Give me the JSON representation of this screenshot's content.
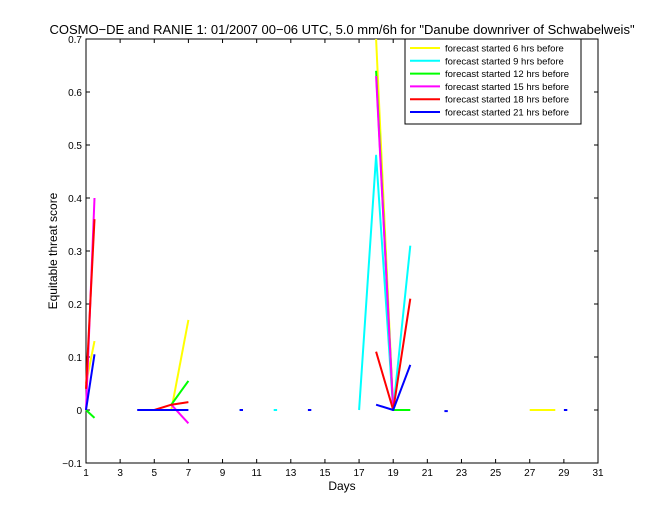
{
  "chart_data": {
    "type": "line",
    "title": "COSMO−DE and RANIE 1: 01/2007 00−06 UTC, 5.0 mm/6h for \"Danube downriver of Schwabelweis\"",
    "xlabel": "Days",
    "ylabel": "Equitable threat score",
    "xlim": [
      1,
      31
    ],
    "ylim": [
      -0.1,
      0.7
    ],
    "xticks": [
      "1",
      "3",
      "5",
      "7",
      "9",
      "11",
      "13",
      "15",
      "17",
      "19",
      "21",
      "23",
      "25",
      "27",
      "29",
      "31"
    ],
    "yticks": [
      "−0.1",
      "0",
      "0.1",
      "0.2",
      "0.3",
      "0.4",
      "0.5",
      "0.6",
      "0.7"
    ],
    "grid": false,
    "legend_position": "top-right",
    "series": [
      {
        "name": "forecast started 6 hrs before",
        "color": "#ffff00",
        "segments": [
          [
            [
              1.0,
              0.05
            ],
            [
              1.5,
              0.13
            ]
          ],
          [
            [
              6.0,
              0.0
            ],
            [
              7.0,
              0.17
            ]
          ],
          [
            [
              18.0,
              0.7
            ],
            [
              19.0,
              0.0
            ]
          ],
          [
            [
              27.0,
              0.0
            ],
            [
              28.5,
              0.0
            ]
          ]
        ]
      },
      {
        "name": "forecast started 9 hrs before",
        "color": "#00ffff",
        "segments": [
          [
            [
              17.0,
              0.0
            ],
            [
              18.0,
              0.48
            ],
            [
              19.0,
              0.0
            ],
            [
              20.0,
              0.31
            ]
          ],
          [
            [
              10.0,
              0.0
            ],
            [
              10.2,
              0.0
            ]
          ],
          [
            [
              12.0,
              0.0
            ],
            [
              12.2,
              0.0
            ]
          ]
        ]
      },
      {
        "name": "forecast started 12 hrs before",
        "color": "#00ff00",
        "segments": [
          [
            [
              1.0,
              0.0
            ],
            [
              1.5,
              -0.015
            ]
          ],
          [
            [
              6.0,
              0.01
            ],
            [
              7.0,
              0.055
            ]
          ],
          [
            [
              18.0,
              0.64
            ],
            [
              19.0,
              0.0
            ],
            [
              20.0,
              0.0
            ]
          ]
        ]
      },
      {
        "name": "forecast started 15 hrs before",
        "color": "#ff00ff",
        "segments": [
          [
            [
              1.0,
              0.0
            ],
            [
              1.5,
              0.4
            ]
          ],
          [
            [
              6.0,
              0.01
            ],
            [
              7.0,
              -0.025
            ]
          ],
          [
            [
              18.0,
              0.63
            ],
            [
              19.0,
              0.0
            ]
          ]
        ]
      },
      {
        "name": "forecast started 18 hrs before",
        "color": "#ff0000",
        "segments": [
          [
            [
              1.0,
              0.04
            ],
            [
              1.5,
              0.36
            ]
          ],
          [
            [
              5.0,
              0.0
            ],
            [
              6.0,
              0.01
            ],
            [
              7.0,
              0.015
            ]
          ],
          [
            [
              18.0,
              0.11
            ],
            [
              19.0,
              0.0
            ],
            [
              20.0,
              0.21
            ]
          ]
        ]
      },
      {
        "name": "forecast started 21 hrs before",
        "color": "#0000ff",
        "segments": [
          [
            [
              1.0,
              0.0
            ],
            [
              1.5,
              0.105
            ]
          ],
          [
            [
              4.0,
              0.0
            ],
            [
              7.0,
              0.0
            ]
          ],
          [
            [
              18.0,
              0.01
            ],
            [
              19.0,
              0.0
            ],
            [
              20.0,
              0.085
            ]
          ],
          [
            [
              10.0,
              0.0
            ],
            [
              10.2,
              0.0
            ]
          ],
          [
            [
              14.0,
              0.0
            ],
            [
              14.2,
              0.0
            ]
          ],
          [
            [
              22.0,
              -0.002
            ],
            [
              22.2,
              -0.002
            ]
          ],
          [
            [
              29.0,
              0.0
            ],
            [
              29.2,
              0.0
            ]
          ]
        ]
      }
    ]
  }
}
